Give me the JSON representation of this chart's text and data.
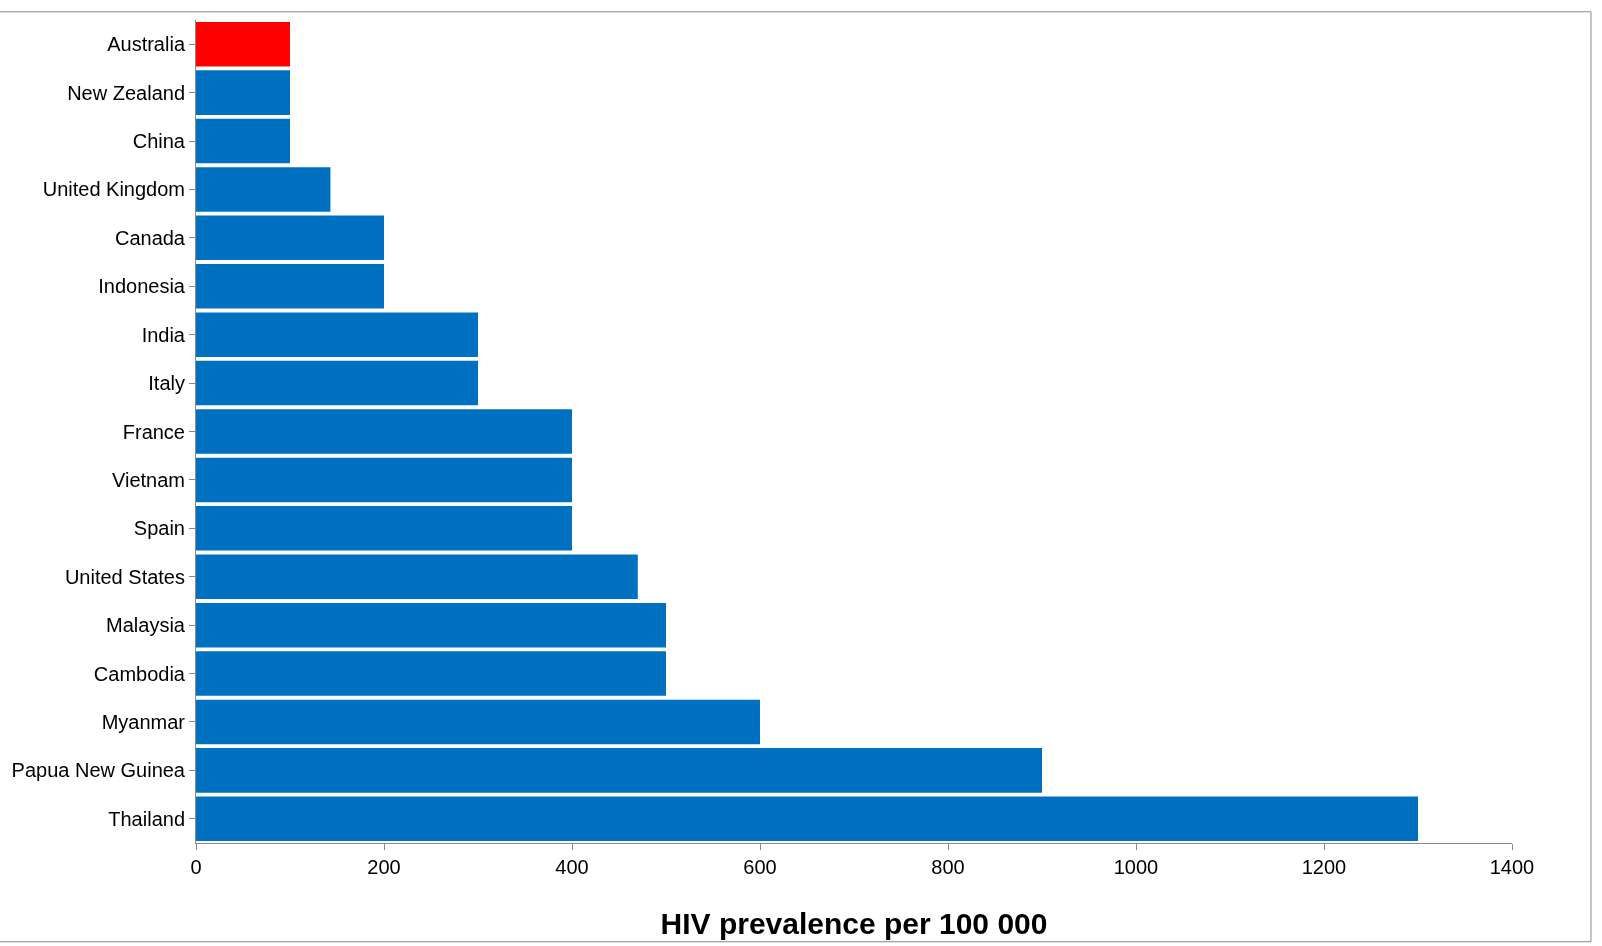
{
  "chart_data": {
    "type": "bar",
    "orientation": "horizontal",
    "xlabel": "HIV prevalence per 100 000",
    "categories": [
      "Australia",
      "New Zealand",
      "China",
      "United Kingdom",
      "Canada",
      "Indonesia",
      "India",
      "Italy",
      "France",
      "Vietnam",
      "Spain",
      "United States",
      "Malaysia",
      "Cambodia",
      "Myanmar",
      "Papua New Guinea",
      "Thailand"
    ],
    "values": [
      100,
      100,
      100,
      143,
      200,
      200,
      300,
      300,
      400,
      400,
      400,
      470,
      500,
      500,
      600,
      900,
      1300
    ],
    "colors": [
      "#ff0000",
      "#0070c0",
      "#0070c0",
      "#0070c0",
      "#0070c0",
      "#0070c0",
      "#0070c0",
      "#0070c0",
      "#0070c0",
      "#0070c0",
      "#0070c0",
      "#0070c0",
      "#0070c0",
      "#0070c0",
      "#0070c0",
      "#0070c0",
      "#0070c0"
    ],
    "xlim": [
      0,
      1400
    ],
    "xticks": [
      0,
      200,
      400,
      600,
      800,
      1000,
      1200,
      1400
    ],
    "legend": false
  }
}
